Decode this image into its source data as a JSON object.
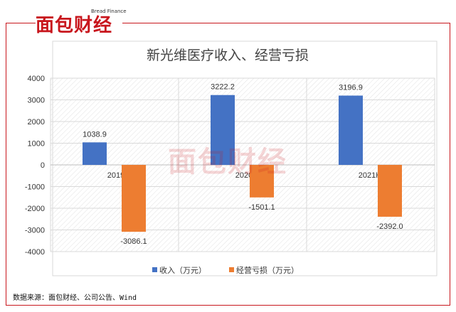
{
  "brand": {
    "logo_text": "面包财经",
    "logo_sub": "Bread Finance"
  },
  "source_text": "数据来源：面包财经、公司公告、Wind",
  "colors": {
    "frame": "#c8161d",
    "revenue": "#4472c4",
    "loss": "#ed7d31"
  },
  "chart_data": {
    "type": "bar",
    "title": "新光维医疗收入、经营亏损",
    "categories": [
      "2019",
      "2020",
      "2021H1"
    ],
    "series": [
      {
        "name": "收入（万元）",
        "values": [
          1038.9,
          3222.2,
          3196.9
        ],
        "labels": [
          "1038.9",
          "3222.2",
          "3196.9"
        ]
      },
      {
        "name": "经营亏损（万元）",
        "values": [
          -3086.1,
          -1501.1,
          -2392.0
        ],
        "labels": [
          "-3086.1",
          "-1501.1",
          "-2392.0"
        ]
      }
    ],
    "ylim": [
      -4000,
      4000
    ],
    "yticks": [
      "4000",
      "3000",
      "2000",
      "1000",
      "0",
      "-1000",
      "-2000",
      "-3000",
      "-4000"
    ],
    "xlabel": "",
    "ylabel": "",
    "legend_position": "bottom",
    "grid": true
  }
}
